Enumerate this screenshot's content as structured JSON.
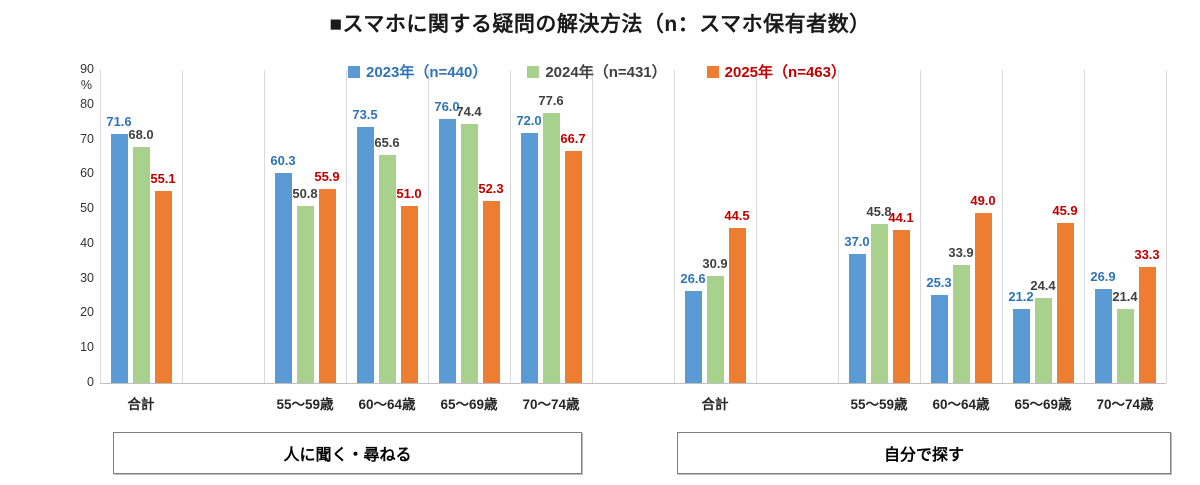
{
  "title": "■スマホに関する疑問の解決方法（n：スマホ保有者数）",
  "colors": {
    "series_blue": "#5b9bd5",
    "series_green": "#a9d18e",
    "series_orange": "#ed7d31",
    "label_blue": "#2e74b5",
    "label_dark": "#404040",
    "label_red": "#c00000",
    "grid": "#d9d9d9",
    "axis": "#bfbfbf"
  },
  "legend": [
    {
      "label": "2023年（n=440）",
      "swatch": "#5b9bd5",
      "text_color": "#2e74b5"
    },
    {
      "label": "2024年（n=431）",
      "swatch": "#a9d18e",
      "text_color": "#404040"
    },
    {
      "label": "2025年（n=463）",
      "swatch": "#ed7d31",
      "text_color": "#c00000"
    }
  ],
  "y_axis": {
    "unit": "%",
    "ticks": [
      0,
      10,
      20,
      30,
      40,
      50,
      60,
      70,
      80,
      90
    ],
    "max": 90
  },
  "chart_data": {
    "type": "bar",
    "title": "■スマホに関する疑問の解決方法（n：スマホ保有者数）",
    "xlabel": "",
    "ylabel": "%",
    "ylim": [
      0,
      90
    ],
    "grid": "vertical-category-separators-only",
    "legend_position": "top-center",
    "series_meta": [
      {
        "name": "2023年（n=440）",
        "color": "#5b9bd5",
        "label_color": "#2e74b5"
      },
      {
        "name": "2024年（n=431）",
        "color": "#a9d18e",
        "label_color": "#404040"
      },
      {
        "name": "2025年（n=463）",
        "color": "#ed7d31",
        "label_color": "#c00000"
      }
    ],
    "groups": [
      {
        "label": "人に聞く・尋ねる",
        "categories": [
          "合計",
          "55〜59歳",
          "60〜64歳",
          "65〜69歳",
          "70〜74歳"
        ],
        "series": [
          {
            "name": "2023年（n=440）",
            "values": [
              71.6,
              60.3,
              73.5,
              76.0,
              72.0
            ]
          },
          {
            "name": "2024年（n=431）",
            "values": [
              68.0,
              50.8,
              65.6,
              74.4,
              77.6
            ]
          },
          {
            "name": "2025年（n=463）",
            "values": [
              55.1,
              55.9,
              51.0,
              52.3,
              66.7
            ]
          }
        ]
      },
      {
        "label": "自分で探す",
        "categories": [
          "合計",
          "55〜59歳",
          "60〜64歳",
          "65〜69歳",
          "70〜74歳"
        ],
        "series": [
          {
            "name": "2023年（n=440）",
            "values": [
              26.6,
              37.0,
              25.3,
              21.2,
              26.9
            ]
          },
          {
            "name": "2024年（n=431）",
            "values": [
              30.9,
              45.8,
              33.9,
              24.4,
              21.4
            ]
          },
          {
            "name": "2025年（n=463）",
            "values": [
              44.5,
              44.1,
              49.0,
              45.9,
              33.3
            ]
          }
        ]
      }
    ]
  }
}
